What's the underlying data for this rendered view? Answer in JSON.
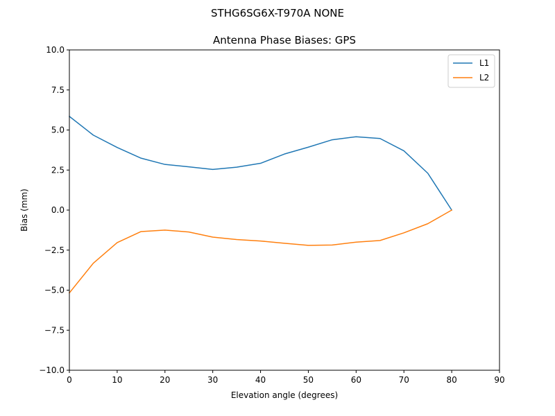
{
  "chart_data": {
    "type": "line",
    "suptitle": "STHG6SG6X-T970A NONE",
    "title": "Antenna Phase Biases: GPS",
    "xlabel": "Elevation angle (degrees)",
    "ylabel": "Bias (mm)",
    "xlim": [
      0,
      90
    ],
    "ylim": [
      -10,
      10
    ],
    "xticks": [
      0,
      10,
      20,
      30,
      40,
      50,
      60,
      70,
      80,
      90
    ],
    "yticks": [
      -10.0,
      -7.5,
      -5.0,
      -2.5,
      0.0,
      2.5,
      5.0,
      7.5,
      10.0
    ],
    "xtick_labels": [
      "0",
      "10",
      "20",
      "30",
      "40",
      "50",
      "60",
      "70",
      "80",
      "90"
    ],
    "ytick_labels": [
      "−10.0",
      "−7.5",
      "−5.0",
      "−2.5",
      "0.0",
      "2.5",
      "5.0",
      "7.5",
      "10.0"
    ],
    "grid": false,
    "legend_position": "top-right",
    "x": [
      0,
      5,
      10,
      15,
      20,
      25,
      30,
      35,
      40,
      45,
      50,
      55,
      60,
      65,
      70,
      75,
      80
    ],
    "series": [
      {
        "name": "L1",
        "color": "#1f77b4",
        "values": [
          5.85,
          4.68,
          3.91,
          3.24,
          2.85,
          2.7,
          2.54,
          2.68,
          2.92,
          3.5,
          3.93,
          4.39,
          4.58,
          4.47,
          3.7,
          2.3,
          0.0
        ]
      },
      {
        "name": "L2",
        "color": "#ff7f0e",
        "values": [
          -5.17,
          -3.32,
          -2.03,
          -1.34,
          -1.25,
          -1.37,
          -1.69,
          -1.84,
          -1.93,
          -2.07,
          -2.2,
          -2.18,
          -2.0,
          -1.9,
          -1.42,
          -0.85,
          0.0
        ]
      }
    ]
  }
}
